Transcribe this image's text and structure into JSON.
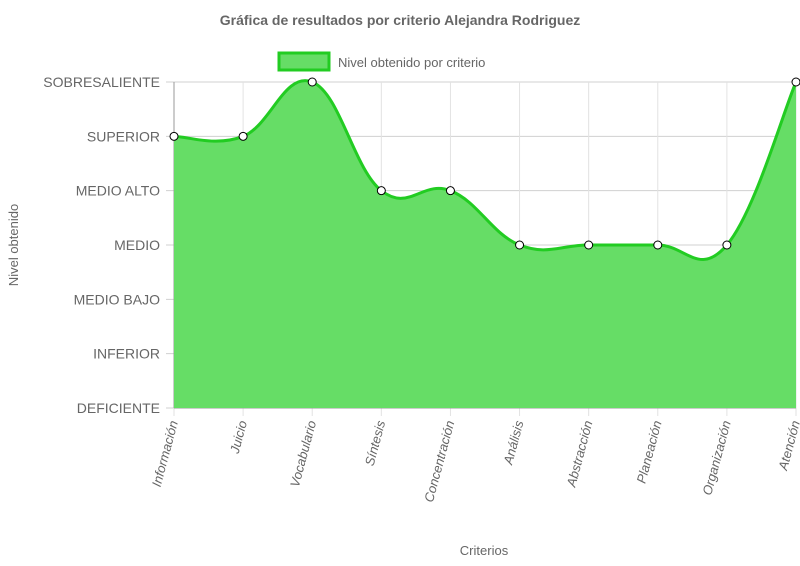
{
  "chart_data": {
    "type": "area",
    "title": "Gráfica de resultados por criterio Alejandra Rodriguez",
    "xlabel": "Criterios",
    "ylabel": "Nivel obtenido",
    "y_levels": [
      "DEFICIENTE",
      "INFERIOR",
      "MEDIO BAJO",
      "MEDIO",
      "MEDIO ALTO",
      "SUPERIOR",
      "SOBRESALIENTE"
    ],
    "categories": [
      "Información",
      "Juicio",
      "Vocabulario",
      "Síntesis",
      "Concentración",
      "Análisis",
      "Abstracción",
      "Planeación",
      "Organización",
      "Atención"
    ],
    "series": [
      {
        "name": "Nivel obtenido por criterio",
        "values": [
          "SUPERIOR",
          "SUPERIOR",
          "SOBRESALIENTE",
          "MEDIO ALTO",
          "MEDIO ALTO",
          "MEDIO",
          "MEDIO",
          "MEDIO",
          "MEDIO",
          "SOBRESALIENTE"
        ],
        "fill_color": "#66dd66",
        "line_color": "#22cc22"
      }
    ],
    "legend": "top",
    "grid": true
  }
}
